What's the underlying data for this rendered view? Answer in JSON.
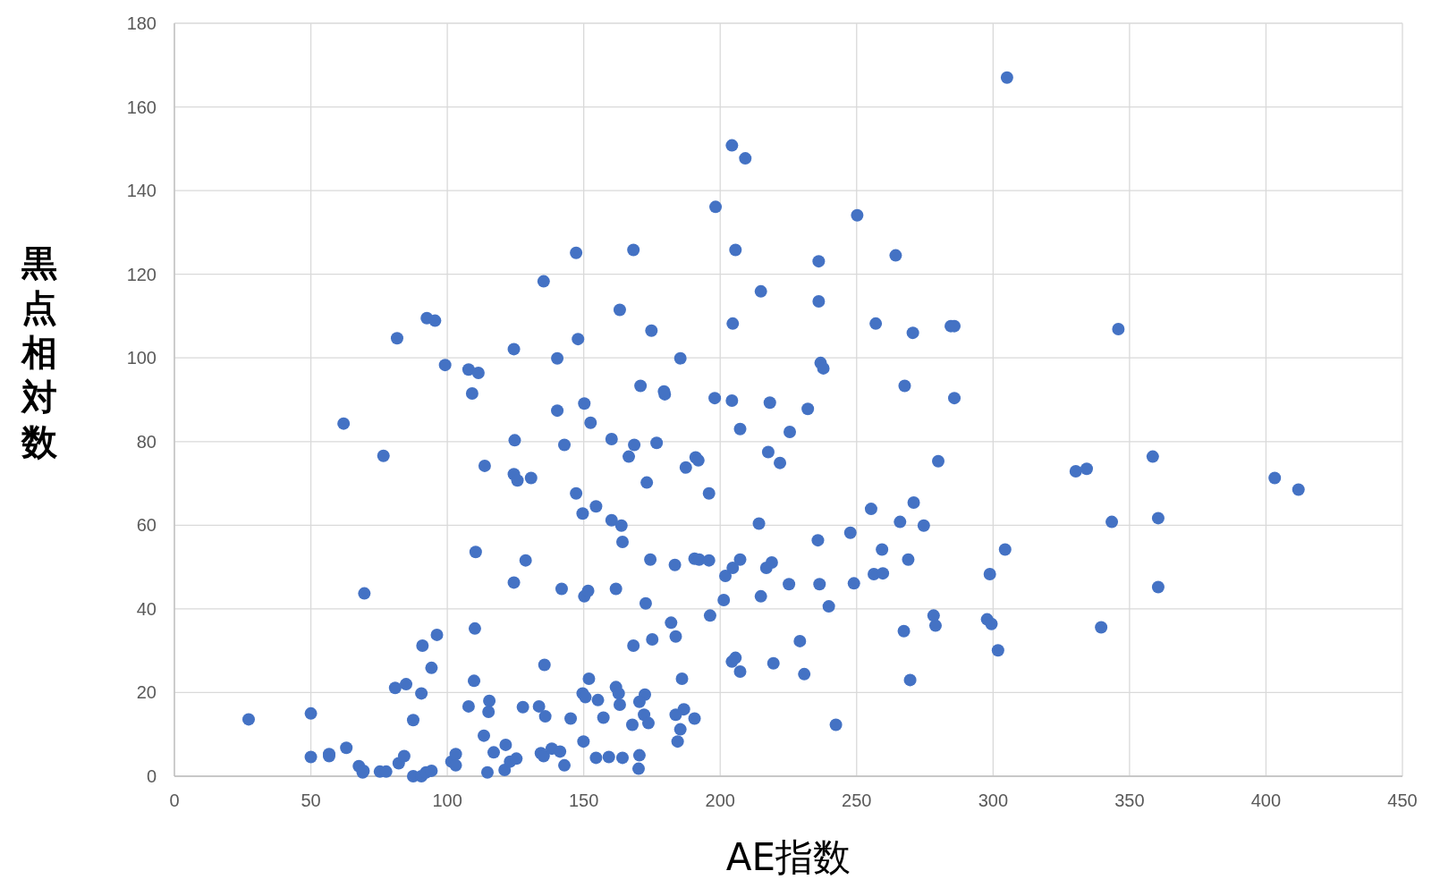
{
  "chart_data": {
    "type": "scatter",
    "xlabel": "AE指数",
    "ylabel": "黒点相対数",
    "xlim": [
      0,
      450
    ],
    "xticks": [
      0,
      50,
      100,
      150,
      200,
      250,
      300,
      350,
      400,
      450
    ],
    "ylim": [
      0,
      180
    ],
    "yticks": [
      0,
      20,
      40,
      60,
      80,
      100,
      120,
      140,
      160,
      180
    ],
    "grid": true,
    "marker": "circle",
    "series": [
      {
        "color": "#4472c4",
        "x": [
          27.2,
          50,
          50,
          56.7,
          56.7,
          63,
          67.6,
          69,
          69.3,
          75.3,
          77.6,
          82.2,
          84.2,
          87.5,
          90.5,
          92.2,
          94.2,
          87.5,
          80.9,
          84.9,
          90.5,
          94.2,
          90.9,
          96.2,
          69.6,
          62,
          76.6,
          81.6,
          92.5,
          95.5,
          99.2,
          107.8,
          111.4,
          109.1,
          113.7,
          110.4,
          110.1,
          109.8,
          107.8,
          101.5,
          103.1,
          103.1,
          113.4,
          115.1,
          115.4,
          117,
          114.7,
          121.4,
          121,
          123,
          125.3,
          127.7,
          124.4,
          124.7,
          124.4,
          125.7,
          130.7,
          124.4,
          128.7,
          135.3,
          133.6,
          135.9,
          134.3,
          135.3,
          138.3,
          141.3,
          135.6,
          142.9,
          145.2,
          140.3,
          140.3,
          142.9,
          141.9,
          147.2,
          147.9,
          147.2,
          149.6,
          150.2,
          152.5,
          154.5,
          150.2,
          151.6,
          149.6,
          150.6,
          151.9,
          149.9,
          155.2,
          157.2,
          154.5,
          159.2,
          164.2,
          163.2,
          168.2,
          160.2,
          160.2,
          163.8,
          164.2,
          161.8,
          166.5,
          168.5,
          170.8,
          174.8,
          173.1,
          176.7,
          174.4,
          172.7,
          168.2,
          175.1,
          161.8,
          162.8,
          163.2,
          167.8,
          172.4,
          170.4,
          172.1,
          173.7,
          170.4,
          170.1,
          179.4,
          179.7,
          185.4,
          187.4,
          191,
          192,
          195.9,
          183.4,
          190.6,
          192.3,
          195.9,
          182,
          183.7,
          186,
          186.7,
          183.7,
          185.4,
          184.4,
          190.6,
          196.3,
          198.3,
          198,
          204.3,
          209.2,
          205.6,
          204.6,
          204.3,
          207.3,
          201.3,
          201.9,
          204.6,
          207.3,
          204.3,
          205.6,
          207.3,
          214.9,
          218.2,
          217.6,
          221.9,
          214.2,
          216.9,
          218.9,
          214.9,
          219.5,
          225.5,
          232.1,
          225.2,
          229.2,
          230.8,
          236.1,
          236.1,
          236.8,
          237.8,
          235.8,
          236.4,
          239.8,
          242.4,
          250.2,
          247.7,
          249,
          264.3,
          257,
          255.3,
          259.3,
          256.3,
          259.6,
          270.6,
          267.6,
          265.9,
          270.9,
          274.6,
          268.9,
          267.3,
          269.6,
          279.9,
          278.2,
          278.9,
          284.5,
          285.8,
          285.8,
          305.1,
          298.8,
          297.8,
          299.4,
          301.8,
          304.4,
          330.3,
          334.3,
          345.9,
          343.5,
          339.6,
          358.5,
          360.5,
          360.5,
          403.2,
          411.9
        ],
        "values": [
          13.6,
          15,
          4.6,
          5.3,
          4.8,
          6.8,
          2.4,
          0.9,
          1.3,
          1.1,
          1.1,
          3.1,
          4.8,
          0,
          0,
          0.9,
          1.3,
          13.4,
          21.1,
          22,
          19.8,
          25.9,
          31.2,
          33.8,
          43.7,
          84.3,
          76.6,
          104.7,
          109.5,
          108.9,
          98.3,
          97.2,
          96.4,
          91.5,
          74.2,
          53.6,
          35.3,
          22.8,
          16.7,
          3.5,
          5.3,
          2.6,
          9.7,
          15.4,
          18,
          5.7,
          0.9,
          7.5,
          1.5,
          3.5,
          4.2,
          16.5,
          102.1,
          80.3,
          72.2,
          70.7,
          71.3,
          46.3,
          51.6,
          118.3,
          16.7,
          14.3,
          5.5,
          4.8,
          6.6,
          5.9,
          26.6,
          2.6,
          13.8,
          99.9,
          87.4,
          79.2,
          44.8,
          125.1,
          104.5,
          67.6,
          62.8,
          89.1,
          84.5,
          64.5,
          43,
          44.3,
          19.8,
          18.9,
          23.3,
          8.3,
          18.2,
          14,
          4.4,
          4.6,
          4.4,
          111.5,
          125.8,
          80.6,
          61.2,
          59.9,
          56,
          44.8,
          76.4,
          79.2,
          93.3,
          106.5,
          70.2,
          79.7,
          51.8,
          41.3,
          31.2,
          32.7,
          21.3,
          19.8,
          17.1,
          12.3,
          19.5,
          17.8,
          14.7,
          12.7,
          5,
          1.8,
          92,
          91.3,
          99.9,
          73.8,
          76.2,
          75.5,
          67.6,
          50.5,
          52,
          51.8,
          51.6,
          36.7,
          33.4,
          23.3,
          16,
          14.7,
          11.2,
          8.3,
          13.8,
          38.4,
          136.1,
          90.4,
          150.8,
          147.7,
          125.8,
          108.2,
          89.8,
          83,
          42.1,
          47.9,
          49.8,
          51.8,
          27.4,
          28.3,
          25,
          115.9,
          89.3,
          77.5,
          74.9,
          60.4,
          49.8,
          51.1,
          43,
          27,
          82.3,
          87.8,
          45.9,
          32.3,
          24.4,
          123.1,
          113.5,
          98.8,
          97.5,
          56.4,
          45.9,
          40.6,
          12.3,
          134.1,
          58.2,
          46.1,
          124.5,
          108.2,
          63.9,
          54.2,
          48.3,
          48.5,
          106,
          93.3,
          60.8,
          65.4,
          59.9,
          51.8,
          34.7,
          23,
          75.3,
          38.4,
          36,
          107.6,
          107.6,
          90.4,
          167,
          48.3,
          37.5,
          36.4,
          30.1,
          54.2,
          72.9,
          73.5,
          106.9,
          60.8,
          35.6,
          76.4,
          61.7,
          45.2,
          71.3,
          68.5
        ]
      }
    ]
  }
}
